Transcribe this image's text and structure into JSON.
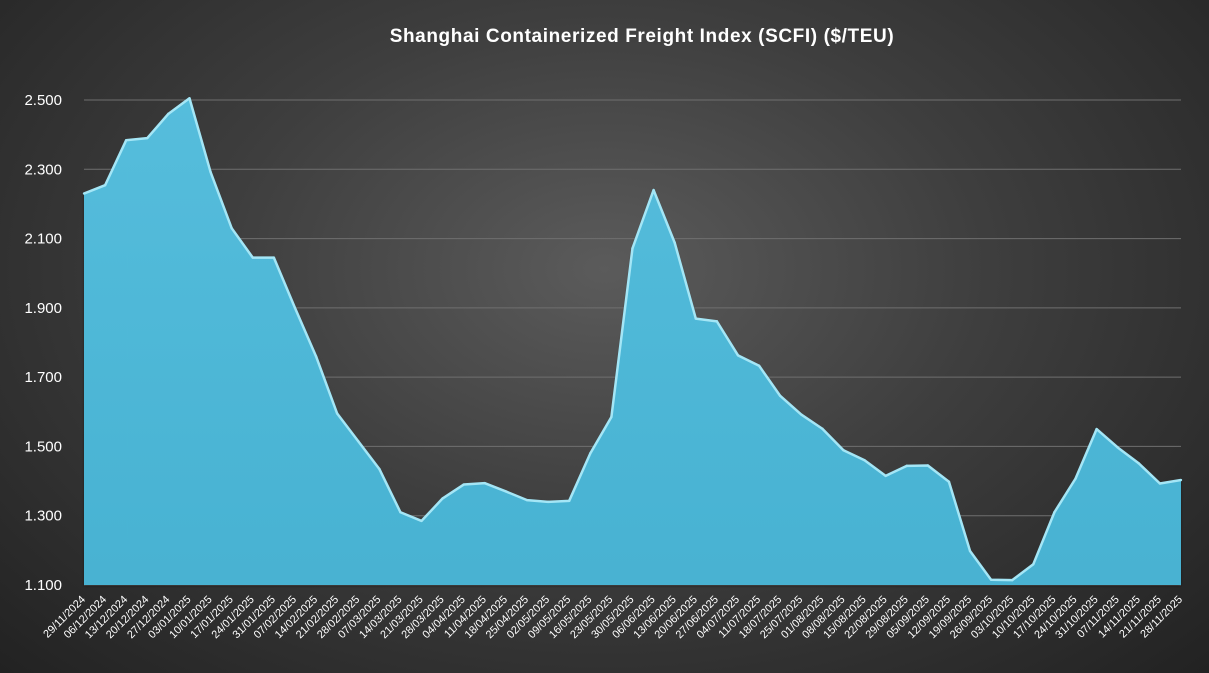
{
  "chart_data": {
    "type": "area",
    "title": "Shanghai Containerized Freight Index (SCFI) ($/TEU)",
    "xlabel": "",
    "ylabel": "",
    "ylim": [
      1100,
      2500
    ],
    "yticks": [
      1100,
      1300,
      1500,
      1700,
      1900,
      2100,
      2300,
      2500
    ],
    "ytick_labels": [
      "1.100",
      "1.300",
      "1.500",
      "1.700",
      "1.900",
      "2.100",
      "2.300",
      "2.500"
    ],
    "grid": true,
    "legend": "none",
    "x_tick_labels": [
      "29/11/2024",
      "06/12/2024",
      "13/12/2024",
      "20/12/2024",
      "27/12/2024",
      "03/01/2025",
      "10/01/2025",
      "17/01/2025",
      "24/01/2025",
      "31/01/2025",
      "07/02/2025",
      "14/02/2025",
      "21/02/2025",
      "28/02/2025",
      "07/03/2025",
      "14/03/2025",
      "21/03/2025",
      "28/03/2025",
      "04/04/2025",
      "11/04/2025",
      "18/04/2025",
      "25/04/2025",
      "02/05/2025",
      "09/05/2025",
      "16/05/2025",
      "23/05/2025",
      "30/05/2025",
      "06/06/2025",
      "13/06/2025",
      "20/06/2025",
      "27/06/2025",
      "04/07/2025",
      "11/07/2025",
      "18/07/2025",
      "25/07/2025",
      "01/08/2025",
      "08/08/2025",
      "15/08/2025",
      "22/08/2025",
      "29/08/2025",
      "05/09/2025",
      "12/09/2025",
      "19/09/2025",
      "26/09/2025",
      "03/10/2025",
      "10/10/2025",
      "17/10/2025",
      "24/10/2025",
      "31/10/2025",
      "07/11/2025",
      "14/11/2025",
      "21/11/2025",
      "28/11/2025"
    ],
    "series": [
      {
        "values": [
          2230,
          2254,
          2384,
          2390,
          2460,
          2505,
          2292,
          2130,
          2045,
          2045,
          1900,
          1760,
          1595,
          1515,
          1435,
          1310,
          1285,
          1350,
          1390,
          1394,
          1370,
          1345,
          1340,
          1343,
          1480,
          1585,
          2072,
          2240,
          2088,
          1869,
          1861,
          1763,
          1733,
          1646,
          1592,
          1551,
          1489,
          1460,
          1415,
          1444,
          1445,
          1398,
          1198,
          1115,
          1114,
          1160,
          1310,
          1407,
          1550,
          1497,
          1451,
          1393,
          1403
        ]
      }
    ],
    "colors": {
      "fill": "#4db8d8",
      "edge": "#a4e6f6",
      "grid": "#6f6f6f",
      "text": "#ffffff"
    }
  }
}
